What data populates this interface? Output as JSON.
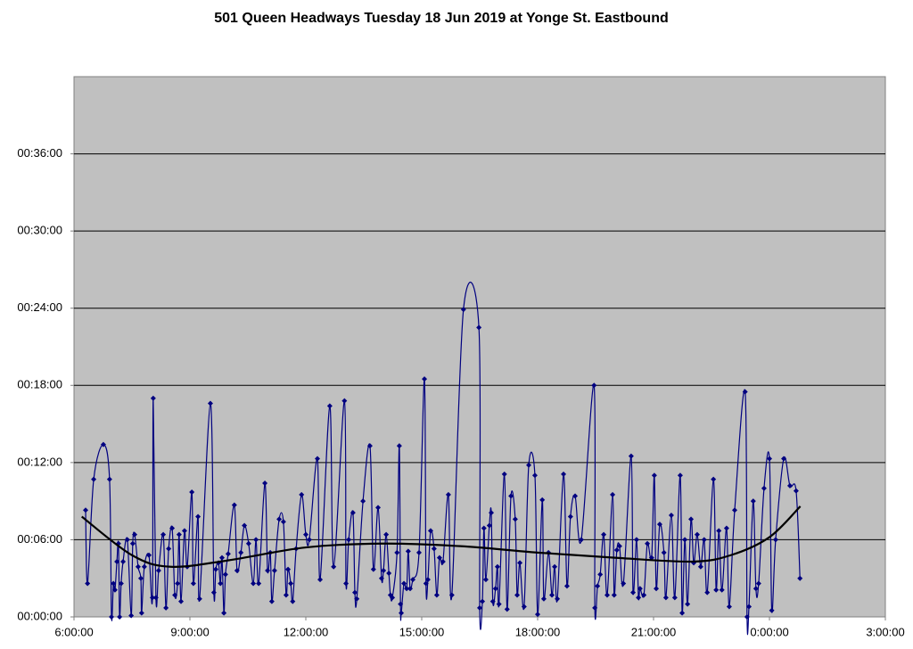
{
  "chart_data": {
    "type": "line",
    "title": "501 Queen Headways Tuesday 18 Jun 2019 at Yonge St. Eastbound",
    "xlim": [
      6,
      27
    ],
    "xticks": [
      {
        "value": 6,
        "label": "6:00:00"
      },
      {
        "value": 9,
        "label": "9:00:00"
      },
      {
        "value": 12,
        "label": "12:00:00"
      },
      {
        "value": 15,
        "label": "15:00:00"
      },
      {
        "value": 18,
        "label": "18:00:00"
      },
      {
        "value": 21,
        "label": "21:00:00"
      },
      {
        "value": 24,
        "label": "0:00:00"
      },
      {
        "value": 27,
        "label": "3:00:00"
      }
    ],
    "ylim": [
      0,
      42
    ],
    "yticks": [
      {
        "value": 0,
        "label": "00:00:00"
      },
      {
        "value": 6,
        "label": "00:06:00"
      },
      {
        "value": 12,
        "label": "00:12:00"
      },
      {
        "value": 18,
        "label": "00:18:00"
      },
      {
        "value": 24,
        "label": "00:24:00"
      },
      {
        "value": 30,
        "label": "00:30:00"
      },
      {
        "value": 36,
        "label": "00:36:00"
      }
    ],
    "grid": true,
    "background": "#c0c0c0",
    "series": [
      {
        "color": "#000080",
        "marker": "diamond",
        "smooth": true,
        "x": [
          6.3,
          6.35,
          6.51,
          6.76,
          6.92,
          6.97,
          7.02,
          7.06,
          7.11,
          7.15,
          7.18,
          7.22,
          7.27,
          7.38,
          7.48,
          7.52,
          7.57,
          7.66,
          7.73,
          7.75,
          7.82,
          7.94,
          8.03,
          8.05,
          8.12,
          8.19,
          8.31,
          8.38,
          8.45,
          8.54,
          8.61,
          8.68,
          8.72,
          8.77,
          8.86,
          8.93,
          9.05,
          9.09,
          9.21,
          9.25,
          9.53,
          9.62,
          9.67,
          9.74,
          9.79,
          9.83,
          9.88,
          9.92,
          9.99,
          10.15,
          10.22,
          10.32,
          10.41,
          10.52,
          10.64,
          10.71,
          10.78,
          10.94,
          11.01,
          11.08,
          11.12,
          11.19,
          11.31,
          11.42,
          11.49,
          11.54,
          11.61,
          11.66,
          11.75,
          11.89,
          12.0,
          12.09,
          12.3,
          12.37,
          12.62,
          12.72,
          13.0,
          13.04,
          13.11,
          13.22,
          13.27,
          13.32,
          13.48,
          13.66,
          13.75,
          13.87,
          13.96,
          14.01,
          14.08,
          14.15,
          14.19,
          14.24,
          14.36,
          14.42,
          14.45,
          14.47,
          14.54,
          14.61,
          14.65,
          14.7,
          14.77,
          14.93,
          15.07,
          15.11,
          15.16,
          15.23,
          15.32,
          15.39,
          15.46,
          15.55,
          15.69,
          15.78,
          16.08,
          16.48,
          16.5,
          16.57,
          16.61,
          16.66,
          16.75,
          16.8,
          16.84,
          16.91,
          16.96,
          17.0,
          17.14,
          17.21,
          17.31,
          17.42,
          17.47,
          17.54,
          17.65,
          17.77,
          17.93,
          18.0,
          18.12,
          18.16,
          18.28,
          18.37,
          18.44,
          18.51,
          18.67,
          18.76,
          18.85,
          18.97,
          19.13,
          19.46,
          19.48,
          19.55,
          19.62,
          19.71,
          19.8,
          19.94,
          19.98,
          20.05,
          20.12,
          20.22,
          20.42,
          20.47,
          20.56,
          20.61,
          20.65,
          20.75,
          20.84,
          20.95,
          21.02,
          21.07,
          21.16,
          21.27,
          21.32,
          21.46,
          21.55,
          21.69,
          21.74,
          21.81,
          21.88,
          21.97,
          22.04,
          22.13,
          22.22,
          22.31,
          22.39,
          22.55,
          22.62,
          22.69,
          22.77,
          22.89,
          22.96,
          23.1,
          23.37,
          23.42,
          23.47,
          23.58,
          23.65,
          23.72,
          23.86,
          24.0,
          24.06,
          24.16,
          24.37,
          24.53,
          24.69,
          24.79
        ],
        "values": [
          8.3,
          2.6,
          10.7,
          13.4,
          10.7,
          0,
          2.6,
          2.1,
          4.3,
          5.7,
          0,
          2.6,
          4.3,
          6.0,
          0.1,
          5.7,
          6.4,
          3.9,
          3.0,
          0.3,
          3.9,
          4.8,
          1.5,
          17.0,
          1.5,
          3.6,
          6.4,
          0.7,
          5.3,
          6.9,
          1.7,
          2.6,
          6.4,
          1.2,
          6.7,
          3.9,
          9.7,
          2.6,
          7.8,
          1.4,
          16.6,
          1.9,
          3.7,
          4.2,
          2.6,
          4.6,
          0.3,
          3.3,
          4.9,
          8.7,
          3.6,
          5.0,
          7.1,
          5.7,
          2.6,
          6.0,
          2.6,
          10.4,
          3.6,
          5.0,
          1.2,
          3.6,
          7.6,
          7.4,
          1.7,
          3.7,
          2.6,
          1.2,
          5.3,
          9.5,
          6.4,
          6.0,
          12.3,
          2.9,
          16.4,
          3.9,
          16.8,
          2.6,
          6.0,
          8.1,
          1.9,
          1.4,
          9.0,
          13.3,
          3.7,
          8.5,
          3.0,
          3.6,
          6.4,
          3.4,
          1.7,
          1.5,
          5.0,
          13.3,
          1.0,
          0.3,
          2.6,
          2.2,
          5.1,
          2.2,
          2.9,
          5.0,
          18.5,
          2.6,
          2.9,
          6.7,
          5.3,
          1.7,
          4.6,
          4.3,
          9.5,
          1.7,
          23.9,
          22.5,
          0.7,
          1.2,
          6.9,
          2.9,
          7.1,
          8.1,
          1.2,
          2.2,
          3.9,
          1.0,
          11.1,
          0.6,
          9.4,
          7.6,
          1.7,
          4.2,
          0.8,
          11.8,
          11.0,
          0.2,
          9.1,
          1.4,
          5.0,
          1.7,
          3.9,
          1.4,
          11.1,
          2.4,
          7.8,
          9.4,
          6.0,
          18.0,
          0.7,
          2.4,
          3.3,
          6.4,
          1.7,
          9.5,
          1.7,
          5.2,
          5.5,
          2.6,
          12.5,
          1.9,
          6.0,
          1.5,
          2.2,
          1.7,
          5.7,
          4.6,
          11.0,
          2.2,
          7.2,
          5.0,
          1.5,
          7.9,
          1.5,
          11.0,
          0.3,
          6.0,
          1.0,
          7.6,
          4.2,
          6.4,
          3.9,
          6.0,
          1.9,
          10.7,
          2.1,
          6.7,
          2.1,
          6.9,
          0.8,
          8.3,
          17.5,
          0,
          0.8,
          9.0,
          2.2,
          2.6,
          10.0,
          12.3,
          0.5,
          6.0,
          12.3,
          10.2,
          9.8,
          3.0
        ]
      },
      {
        "color": "#000000",
        "smooth": true,
        "x": [
          6.2,
          7.5,
          8.5,
          10,
          12,
          14,
          16,
          18,
          20,
          22,
          23,
          24,
          24.8
        ],
        "values": [
          7.8,
          4.8,
          3.9,
          4.4,
          5.4,
          5.7,
          5.5,
          5.0,
          4.6,
          4.3,
          4.8,
          6.2,
          8.6
        ]
      }
    ]
  }
}
